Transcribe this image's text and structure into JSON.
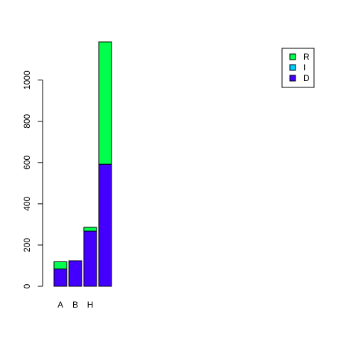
{
  "chart_data": {
    "type": "bar",
    "stacked": true,
    "title": "",
    "xlabel": "",
    "ylabel": "",
    "categories": [
      "A",
      "B",
      "H",
      ""
    ],
    "series": [
      {
        "name": "D",
        "color": "#4400ff",
        "values": [
          84,
          124,
          268,
          592
        ]
      },
      {
        "name": "I",
        "color": "#00ccff",
        "values": [
          0,
          0,
          0,
          0
        ]
      },
      {
        "name": "R",
        "color": "#00ff4c",
        "values": [
          35,
          0,
          18,
          593
        ]
      }
    ],
    "yticks": [
      0,
      200,
      400,
      600,
      800,
      1000
    ],
    "ylim": [
      0,
      1185
    ],
    "grid": false,
    "legend": {
      "position": "top-right",
      "order": [
        "R",
        "I",
        "D"
      ]
    }
  }
}
